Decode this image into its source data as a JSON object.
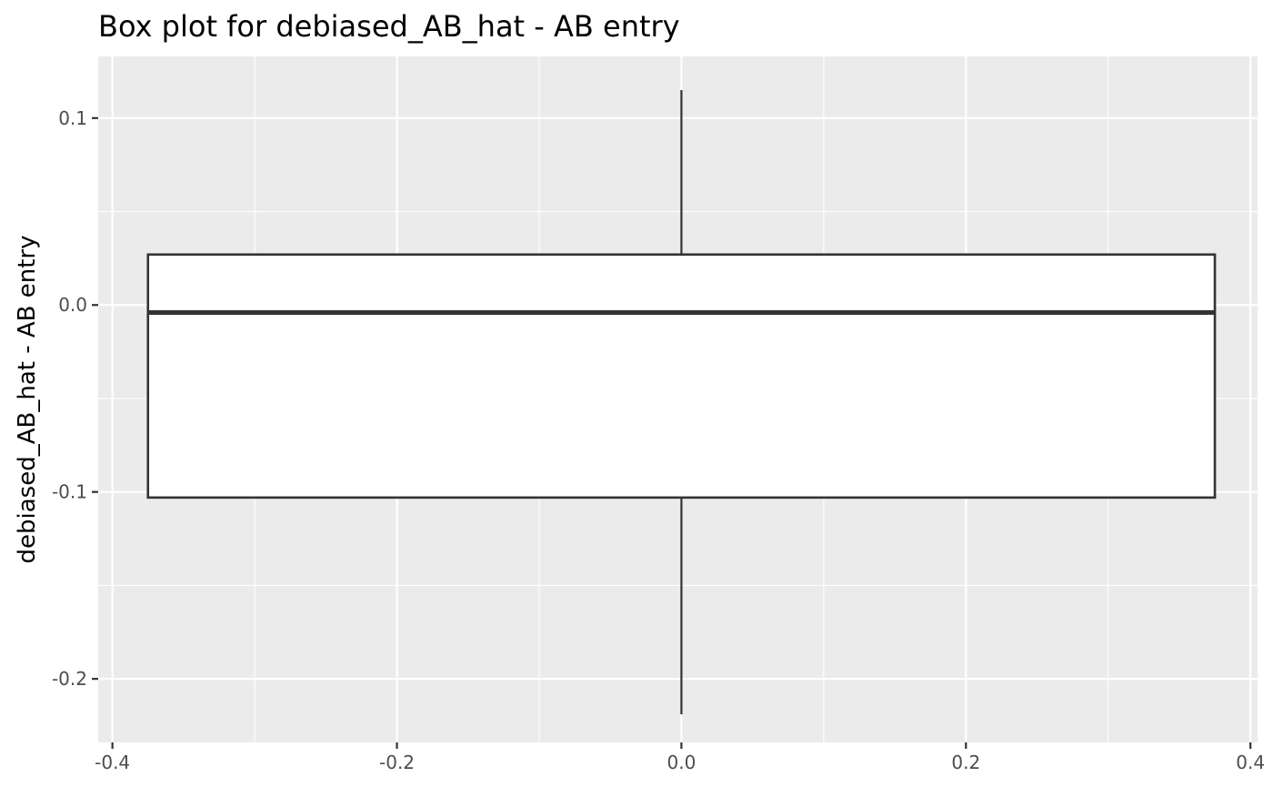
{
  "chart_data": {
    "type": "box",
    "title": "Box plot for debiased_AB_hat - AB entry",
    "xlabel": "",
    "ylabel": "debiased_AB_hat - AB entry",
    "xlim": [
      -0.41,
      0.405
    ],
    "ylim": [
      -0.234,
      0.133
    ],
    "x_ticks": [
      -0.4,
      -0.2,
      0.0,
      0.2,
      0.4
    ],
    "x_tick_labels": [
      "-0.4",
      "-0.2",
      "0.0",
      "0.2",
      "0.4"
    ],
    "y_ticks": [
      -0.2,
      -0.1,
      0.0,
      0.1
    ],
    "y_tick_labels": [
      "-0.2",
      "-0.1",
      "0.0",
      "0.1"
    ],
    "grid": true,
    "box": {
      "x_center": 0.0,
      "x_left": -0.375,
      "x_right": 0.375,
      "min": -0.219,
      "q1": -0.103,
      "median": -0.004,
      "q3": 0.027,
      "max": 0.115
    },
    "colors": {
      "panel_background": "#ebebeb",
      "grid": "#ffffff",
      "box_fill": "#ffffff",
      "box_stroke": "#333333",
      "tick": "#333333"
    }
  }
}
